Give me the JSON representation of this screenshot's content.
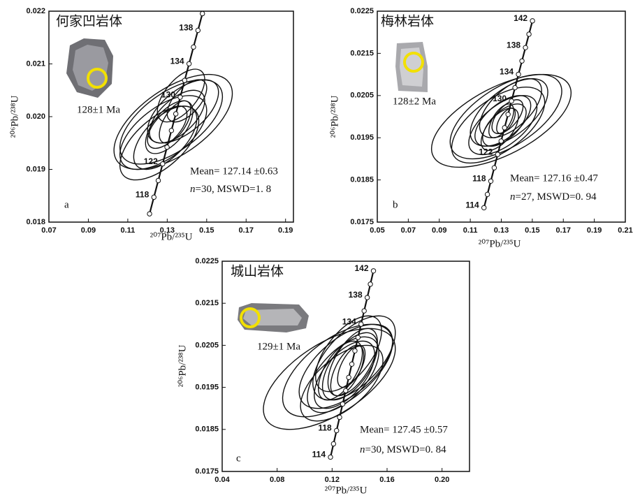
{
  "chart_data": [
    {
      "type": "concordia",
      "title": "何家凹岩体",
      "panel_label": "a",
      "image_caption": "128±1  Ma",
      "mean_text": "Mean= 127.14 ±0.63",
      "n_symbol": "n",
      "stats_text": "=30, MSWD=1. 8",
      "xlabel": "²⁰⁷Pb/²³⁵U",
      "ylabel": "²⁰⁶Pb/²³⁸U",
      "xlim": [
        0.07,
        0.194
      ],
      "xticks": [
        0.07,
        0.09,
        0.11,
        0.13,
        0.15,
        0.17,
        0.19
      ],
      "ylim": [
        0.018,
        0.022
      ],
      "yticks": [
        0.018,
        0.019,
        {
          "value": 0.02,
          "label": "0.020"
        },
        0.021,
        0.022
      ],
      "concordia": {
        "labels": [
          null,
          118,
          null,
          122,
          null,
          null,
          null,
          130,
          null,
          134,
          null,
          138,
          null
        ],
        "x": [
          0.12103,
          0.12324,
          0.12545,
          0.12767,
          0.12989,
          0.13212,
          0.13435,
          0.13659,
          0.13883,
          0.14107,
          0.14332,
          0.14558,
          0.14784
        ],
        "y": [
          0.018157,
          0.018472,
          0.018788,
          0.019104,
          0.019421,
          0.019737,
          0.020053,
          0.020369,
          0.020687,
          0.021003,
          0.02132,
          0.021636,
          0.021954
        ]
      },
      "ellipses": {
        "x": [
          0.133,
          0.128,
          0.138,
          0.131,
          0.135,
          0.129,
          0.14,
          0.126,
          0.134,
          0.137,
          0.132,
          0.13
        ],
        "y": [
          0.0199,
          0.0197,
          0.0201,
          0.0198,
          0.02,
          0.0196,
          0.0203,
          0.0195,
          0.0199,
          0.0204,
          0.0199,
          0.0198
        ],
        "x_err": [
          0.03,
          0.022,
          0.018,
          0.012,
          0.014,
          0.016,
          0.01,
          0.02,
          0.008,
          0.012,
          0.026,
          0.01
        ],
        "y_err": [
          0.0009,
          0.0007,
          0.0006,
          0.0005,
          0.0005,
          0.0006,
          0.0004,
          0.0007,
          0.0004,
          0.0005,
          0.0008,
          0.0004
        ],
        "rho": [
          0.6,
          0.6,
          0.6,
          0.6,
          0.6,
          0.6,
          0.6,
          0.6,
          0.6,
          0.6,
          0.6,
          0.6
        ]
      }
    },
    {
      "type": "concordia",
      "title": "梅林岩体",
      "panel_label": "b",
      "image_caption": "128±2  Ma",
      "mean_text": "Mean= 127.16 ±0.47",
      "n_symbol": "n",
      "stats_text": "=27, MSWD=0. 94",
      "xlabel": "²⁰⁷Pb/²³⁵U",
      "ylabel": "²⁰⁶Pb/²³⁸U",
      "xlim": [
        0.05,
        0.21
      ],
      "xticks": [
        0.05,
        0.07,
        0.09,
        0.11,
        0.13,
        0.15,
        0.17,
        0.19,
        0.21
      ],
      "ylim": [
        0.0175,
        0.0225
      ],
      "yticks": [
        0.0175,
        0.0185,
        0.0195,
        0.0205,
        0.0215,
        0.0225
      ],
      "concordia": {
        "labels": [
          114,
          null,
          118,
          null,
          122,
          null,
          null,
          null,
          130,
          null,
          134,
          null,
          138,
          null,
          142
        ],
        "x": [
          0.11882,
          0.12103,
          0.12324,
          0.12545,
          0.12767,
          0.12989,
          0.13212,
          0.13435,
          0.13659,
          0.13883,
          0.14107,
          0.14332,
          0.14558,
          0.14784,
          0.1501
        ],
        "y": [
          0.017841,
          0.018157,
          0.018472,
          0.018788,
          0.019104,
          0.019421,
          0.019737,
          0.020053,
          0.020369,
          0.020687,
          0.021003,
          0.02132,
          0.021636,
          0.021954,
          0.022271
        ]
      },
      "ellipses": {
        "x": [
          0.13,
          0.133,
          0.128,
          0.135,
          0.131,
          0.132,
          0.129,
          0.134,
          0.13,
          0.136,
          0.131,
          0.133
        ],
        "y": [
          0.0199,
          0.02,
          0.0198,
          0.0201,
          0.0199,
          0.0198,
          0.0197,
          0.02,
          0.0199,
          0.0202,
          0.0198,
          0.0199
        ],
        "x_err": [
          0.045,
          0.036,
          0.03,
          0.025,
          0.018,
          0.014,
          0.012,
          0.01,
          0.008,
          0.02,
          0.022,
          0.006
        ],
        "y_err": [
          0.0011,
          0.001,
          0.0009,
          0.0008,
          0.0006,
          0.0005,
          0.0005,
          0.0004,
          0.0004,
          0.0007,
          0.0007,
          0.0003
        ],
        "rho": [
          0.6,
          0.6,
          0.6,
          0.6,
          0.6,
          0.6,
          0.6,
          0.6,
          0.6,
          0.6,
          0.6,
          0.6
        ]
      }
    },
    {
      "type": "concordia",
      "title": "城山岩体",
      "panel_label": "c",
      "image_caption": "129±1  Ma",
      "mean_text": "Mean= 127.45 ±0.57",
      "n_symbol": "n",
      "stats_text": "=30, MSWD=0. 84",
      "xlabel": "²⁰⁷Pb/²³⁵U",
      "ylabel": "²⁰⁶Pb/²³⁸U",
      "xlim": [
        0.04,
        0.22
      ],
      "xticks": [
        0.04,
        0.08,
        0.12,
        0.16,
        {
          "value": 0.2,
          "label": "0.20"
        }
      ],
      "ylim": [
        0.0175,
        0.0225
      ],
      "yticks": [
        0.0175,
        0.0185,
        0.0195,
        0.0205,
        0.0215,
        0.0225
      ],
      "concordia": {
        "labels": [
          114,
          null,
          118,
          null,
          null,
          null,
          null,
          null,
          null,
          null,
          134,
          null,
          138,
          null,
          142
        ],
        "x": [
          0.11882,
          0.12103,
          0.12324,
          0.12545,
          0.12767,
          0.12989,
          0.13212,
          0.13435,
          0.13659,
          0.13883,
          0.14107,
          0.14332,
          0.14558,
          0.14784,
          0.1501
        ],
        "y": [
          0.017841,
          0.018157,
          0.018472,
          0.018788,
          0.019104,
          0.019421,
          0.019737,
          0.020053,
          0.020369,
          0.020687,
          0.021003,
          0.02132,
          0.021636,
          0.021954,
          0.022271
        ]
      },
      "ellipses": {
        "x": [
          0.118,
          0.124,
          0.13,
          0.136,
          0.128,
          0.133,
          0.126,
          0.131,
          0.135,
          0.129,
          0.132,
          0.127,
          0.134
        ],
        "y": [
          0.0197,
          0.0199,
          0.02,
          0.0202,
          0.0198,
          0.02,
          0.0199,
          0.0199,
          0.0201,
          0.0198,
          0.0203,
          0.0196,
          0.02
        ],
        "x_err": [
          0.048,
          0.04,
          0.034,
          0.03,
          0.026,
          0.02,
          0.016,
          0.012,
          0.018,
          0.022,
          0.024,
          0.03,
          0.01
        ],
        "y_err": [
          0.0012,
          0.0011,
          0.001,
          0.001,
          0.0009,
          0.0008,
          0.0007,
          0.0006,
          0.0008,
          0.0008,
          0.0009,
          0.0009,
          0.0005
        ],
        "rho": [
          0.6,
          0.6,
          0.6,
          0.6,
          0.6,
          0.6,
          0.6,
          0.6,
          0.6,
          0.6,
          0.6,
          0.6,
          0.6
        ]
      }
    }
  ]
}
